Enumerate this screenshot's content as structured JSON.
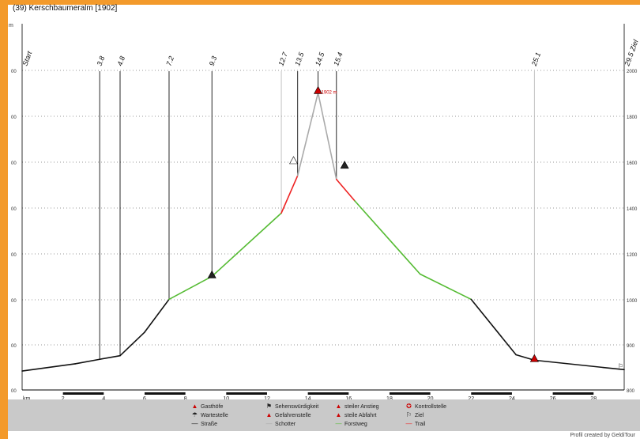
{
  "title": "(39) Kerschbaumeralm [1902]",
  "side_label": "m",
  "credit": "Profil created by GeldiTour",
  "chart_data": {
    "type": "line",
    "title": "(39) Kerschbaumeralm [1902]",
    "xlabel": "km",
    "ylabel": "m",
    "xlim": [
      0,
      29.5
    ],
    "ylim": [
      800,
      2000
    ],
    "x_ticks": [
      0,
      2,
      4,
      6,
      8,
      10,
      12,
      14,
      16,
      18,
      20,
      22,
      24,
      26,
      28
    ],
    "y_ticks_left": [
      "00",
      "00",
      "00",
      "00",
      "00",
      "00",
      "00",
      "00"
    ],
    "y_ticks_right": [
      "2000",
      "1800",
      "1600",
      "1400",
      "1200",
      "1000",
      "900",
      "800"
    ],
    "y_tick_values": [
      2000,
      1800,
      1600,
      1400,
      1200,
      1000,
      900,
      800
    ],
    "grid": true,
    "profile": [
      {
        "x": 0,
        "y": 842,
        "surface": "Straße"
      },
      {
        "x": 2.6,
        "y": 858,
        "surface": "Straße"
      },
      {
        "x": 3.8,
        "y": 868,
        "surface": "Straße"
      },
      {
        "x": 4.8,
        "y": 876,
        "surface": "Straße"
      },
      {
        "x": 6.0,
        "y": 928,
        "surface": "Straße"
      },
      {
        "x": 7.2,
        "y": 1002,
        "surface": "Forstweg"
      },
      {
        "x": 9.3,
        "y": 1102,
        "surface": "Forstweg"
      },
      {
        "x": 12.7,
        "y": 1378,
        "surface": "Trail"
      },
      {
        "x": 13.5,
        "y": 1541,
        "surface": "Schotter"
      },
      {
        "x": 14.5,
        "y": 1902,
        "surface": "Schotter"
      },
      {
        "x": 15.4,
        "y": 1525,
        "surface": "Trail"
      },
      {
        "x": 16.3,
        "y": 1431,
        "surface": "Forstweg"
      },
      {
        "x": 19.5,
        "y": 1112,
        "surface": "Forstweg"
      },
      {
        "x": 22.0,
        "y": 1002,
        "surface": "Straße"
      },
      {
        "x": 24.2,
        "y": 878,
        "surface": "Straße"
      },
      {
        "x": 25.1,
        "y": 866,
        "surface": "Straße"
      },
      {
        "x": 29.5,
        "y": 845,
        "surface": "Straße"
      }
    ],
    "waypoints": [
      {
        "km": 0,
        "label": "Start"
      },
      {
        "km": 3.8,
        "label": "3.8"
      },
      {
        "km": 4.8,
        "label": "4.8"
      },
      {
        "km": 7.2,
        "label": "7.2"
      },
      {
        "km": 9.3,
        "label": "9.3"
      },
      {
        "km": 12.7,
        "label": "12.7"
      },
      {
        "km": 13.5,
        "label": "13.5"
      },
      {
        "km": 14.5,
        "label": "14.5"
      },
      {
        "km": 15.4,
        "label": "15.4"
      },
      {
        "km": 25.1,
        "label": "25.1"
      },
      {
        "km": 29.5,
        "label": "29.5 Ziel"
      }
    ],
    "annotations": [
      {
        "x": 14.5,
        "y": 1902,
        "text": "1902 m"
      }
    ]
  },
  "legend": [
    {
      "icon": "▲",
      "color": "#cc0000",
      "label": "Gasthöfe"
    },
    {
      "icon": "⚑",
      "color": "#222222",
      "label": "Sehenswürdigkeit"
    },
    {
      "icon": "▲",
      "color": "#cc0000",
      "label": "steiler Anstieg"
    },
    {
      "icon": "✪",
      "color": "#cc0000",
      "label": "Kontrollstelle"
    },
    {
      "icon": "☂",
      "color": "#222222",
      "label": "Wartestelle"
    },
    {
      "icon": "▲",
      "color": "#cc0000",
      "label": "Gefahrenstelle"
    },
    {
      "icon": "▲",
      "color": "#cc0000",
      "label": "steile Abfahrt"
    },
    {
      "icon": "⚐",
      "color": "#222222",
      "label": "Ziel"
    },
    {
      "icon": "—",
      "color": "#111111",
      "label": "Straße"
    },
    {
      "icon": "—",
      "color": "#aaaaaa",
      "label": "Schotter"
    },
    {
      "icon": "—",
      "color": "#55bb33",
      "label": "Forstweg"
    },
    {
      "icon": "—",
      "color": "#ee2222",
      "label": "Trail"
    }
  ],
  "colors": {
    "frame": "#f39a2b",
    "road": "#111111",
    "gravel": "#aaaaaa",
    "forest": "#55bb33",
    "trail": "#ee2222"
  }
}
